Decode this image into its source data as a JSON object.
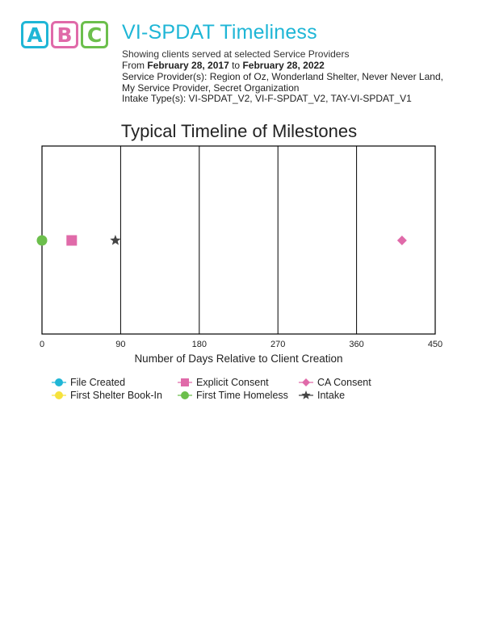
{
  "header": {
    "logo_letters": [
      "A",
      "B",
      "C"
    ],
    "logo_colors": [
      "#1fb6d6",
      "#e06aa9",
      "#6cbf4c"
    ],
    "title": "VI-SPDAT Timeliness",
    "title_color": "#1fb6d6",
    "subtitle": "Showing clients served at selected Service Providers",
    "date_from_prefix": "From ",
    "date_from": "February 28, 2017",
    "date_to_sep": " to ",
    "date_to": "February 28, 2022",
    "providers_label": "Service Provider(s):",
    "providers_value": " Region of Oz, Wonderland Shelter, Never Never Land, My Service Provider, Secret Organization",
    "intake_label": "Intake Type(s):",
    "intake_value": " VI-SPDAT_V2, VI-F-SPDAT_V2, TAY-VI-SPDAT_V1"
  },
  "chart_data": {
    "type": "scatter",
    "title": "Typical Timeline of Milestones",
    "xlabel": "Number of Days Relative to Client Creation",
    "ylabel": "",
    "xlim": [
      0,
      450
    ],
    "xticks": [
      0,
      90,
      180,
      270,
      360,
      450
    ],
    "grid": "vertical",
    "legend_position": "bottom-left",
    "series": [
      {
        "name": "File Created",
        "marker": "circle",
        "color": "#1fb6d6",
        "x": null
      },
      {
        "name": "Explicit Consent",
        "marker": "square",
        "color": "#e06aa9",
        "x": 34
      },
      {
        "name": "CA Consent",
        "marker": "diamond",
        "color": "#e06aa9",
        "x": 412
      },
      {
        "name": "First Shelter Book-In",
        "marker": "circle",
        "color": "#f6e23c",
        "x": null
      },
      {
        "name": "First Time Homeless",
        "marker": "circle",
        "color": "#6cbf4c",
        "x": 0
      },
      {
        "name": "Intake",
        "marker": "star",
        "color": "#444444",
        "x": 84
      }
    ]
  }
}
